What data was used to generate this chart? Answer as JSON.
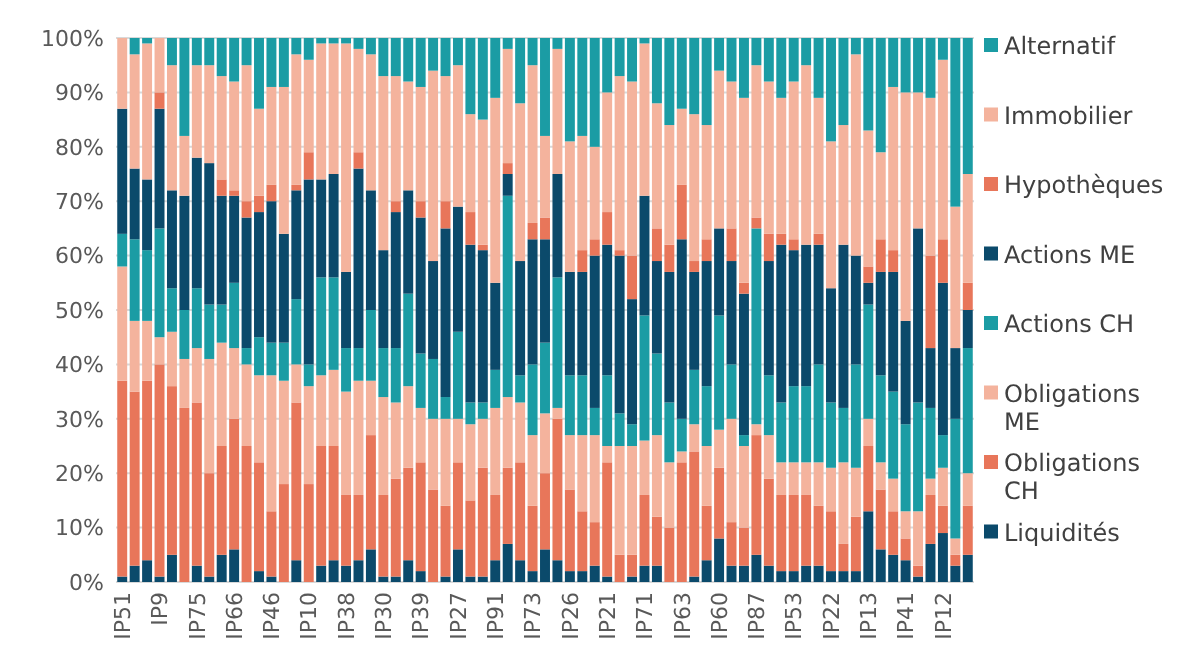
{
  "chart_data": {
    "type": "bar",
    "stacked": true,
    "legend": "right",
    "grid": "y",
    "categories": [
      "IP51",
      null,
      null,
      "IP9",
      null,
      null,
      "IP75",
      null,
      null,
      "IP66",
      null,
      null,
      "IP46",
      null,
      null,
      "IP10",
      null,
      null,
      "IP38",
      null,
      null,
      "IP30",
      null,
      null,
      "IP39",
      null,
      null,
      "IP27",
      null,
      null,
      "IP91",
      null,
      null,
      "IP73",
      null,
      null,
      "IP26",
      null,
      null,
      "IP21",
      null,
      null,
      "IP71",
      null,
      null,
      "IP63",
      null,
      null,
      "IP60",
      null,
      null,
      "IP87",
      null,
      null,
      "IP53",
      null,
      null,
      "IP22",
      null,
      null,
      "IP13",
      null,
      null,
      "IP41",
      null,
      null,
      "IP12",
      null,
      null
    ],
    "ylim": [
      0,
      100
    ],
    "yticks": [
      {
        "value": 0,
        "label": "0%"
      },
      {
        "value": 10,
        "label": "10%"
      },
      {
        "value": 20,
        "label": "20%"
      },
      {
        "value": 30,
        "label": "30%"
      },
      {
        "value": 40,
        "label": "40%"
      },
      {
        "value": 50,
        "label": "50%"
      },
      {
        "value": 60,
        "label": "60%"
      },
      {
        "value": 70,
        "label": "70%"
      },
      {
        "value": 80,
        "label": "80%"
      },
      {
        "value": 90,
        "label": "90%"
      },
      {
        "value": 100,
        "label": "100%"
      }
    ],
    "series": [
      {
        "name": "Liquidités",
        "color": "#0b4a6b",
        "values": [
          1,
          3,
          4,
          1,
          5,
          0,
          3,
          1,
          5,
          6,
          0,
          2,
          1,
          0,
          4,
          0,
          3,
          4,
          3,
          4,
          6,
          1,
          1,
          4,
          2,
          0,
          1,
          6,
          1,
          1,
          4,
          7,
          4,
          2,
          6,
          4,
          2,
          2,
          3,
          1,
          0,
          1,
          3,
          3,
          0,
          0,
          1,
          4,
          8,
          3,
          3,
          5,
          3,
          2,
          2,
          3,
          3,
          2,
          2,
          2,
          13,
          6,
          5,
          4,
          1,
          7,
          9,
          3,
          5
        ]
      },
      {
        "name": "Obligations CH",
        "color": "#e8765a",
        "values": [
          36,
          32,
          33,
          39,
          31,
          32,
          30,
          19,
          20,
          24,
          25,
          20,
          12,
          18,
          29,
          18,
          22,
          21,
          13,
          12,
          21,
          15,
          18,
          17,
          20,
          17,
          13,
          16,
          14,
          20,
          12,
          14,
          18,
          12,
          14,
          26,
          15,
          11,
          8,
          21,
          5,
          4,
          13,
          9,
          10,
          22,
          23,
          10,
          13,
          8,
          7,
          22,
          16,
          14,
          14,
          13,
          11,
          11,
          5,
          10,
          12,
          11,
          8,
          4,
          2,
          9,
          5,
          2,
          9
        ]
      },
      {
        "name": "Obligations ME",
        "color": "#f4b39d",
        "values": [
          21,
          13,
          11,
          5,
          10,
          9,
          10,
          21,
          19,
          13,
          15,
          16,
          25,
          19,
          7,
          18,
          13,
          14,
          19,
          21,
          10,
          18,
          14,
          15,
          10,
          13,
          16,
          8,
          14,
          9,
          16,
          13,
          11,
          13,
          11,
          2,
          10,
          14,
          16,
          3,
          20,
          20,
          10,
          15,
          12,
          2,
          5,
          11,
          7,
          19,
          15,
          2,
          8,
          6,
          6,
          6,
          8,
          8,
          15,
          9,
          5,
          5,
          6,
          5,
          10,
          3,
          7,
          3,
          6
        ]
      },
      {
        "name": "Actions CH",
        "color": "#1b9ca4",
        "values": [
          6,
          15,
          13,
          20,
          8,
          9,
          11,
          10,
          7,
          12,
          3,
          7,
          6,
          7,
          12,
          4,
          18,
          17,
          8,
          6,
          13,
          9,
          10,
          17,
          10,
          11,
          4,
          16,
          4,
          3,
          7,
          37,
          5,
          13,
          13,
          24,
          11,
          11,
          5,
          13,
          6,
          4,
          23,
          15,
          11,
          6,
          10,
          11,
          21,
          10,
          2,
          36,
          11,
          11,
          14,
          14,
          18,
          12,
          10,
          19,
          21,
          16,
          16,
          16,
          20,
          13,
          6,
          22,
          23
        ]
      },
      {
        "name": "Actions ME",
        "color": "#0b4a6b",
        "values": [
          23,
          13,
          13,
          22,
          18,
          21,
          24,
          26,
          20,
          16,
          24,
          23,
          26,
          20,
          20,
          34,
          18,
          19,
          14,
          33,
          22,
          18,
          25,
          19,
          25,
          18,
          31,
          23,
          29,
          28,
          16,
          4,
          21,
          23,
          19,
          19,
          19,
          19,
          28,
          24,
          29,
          23,
          22,
          17,
          24,
          33,
          18,
          23,
          16,
          19,
          26,
          0,
          21,
          29,
          25,
          26,
          22,
          21,
          30,
          20,
          4,
          19,
          22,
          19,
          32,
          11,
          28,
          13,
          7
        ]
      },
      {
        "name": "Hypothèques",
        "color": "#e8765a",
        "values": [
          0,
          0,
          0,
          3,
          0,
          0,
          0,
          0,
          3,
          1,
          3,
          3,
          3,
          0,
          1,
          5,
          0,
          0,
          0,
          3,
          0,
          0,
          2,
          0,
          3,
          0,
          5,
          0,
          6,
          1,
          0,
          2,
          0,
          3,
          4,
          0,
          0,
          4,
          3,
          6,
          1,
          8,
          0,
          6,
          5,
          10,
          2,
          4,
          0,
          6,
          2,
          2,
          5,
          2,
          2,
          0,
          2,
          0,
          0,
          0,
          3,
          6,
          4,
          0,
          0,
          17,
          8,
          0,
          5
        ]
      },
      {
        "name": "Immobilier",
        "color": "#f4b39d",
        "values": [
          13,
          21,
          25,
          10,
          23,
          11,
          17,
          18,
          19,
          20,
          25,
          16,
          18,
          27,
          24,
          17,
          25,
          24,
          42,
          19,
          25,
          32,
          23,
          20,
          21,
          35,
          23,
          26,
          18,
          23,
          34,
          21,
          29,
          29,
          15,
          23,
          24,
          21,
          17,
          22,
          32,
          32,
          28,
          23,
          22,
          14,
          27,
          21,
          29,
          27,
          34,
          28,
          28,
          25,
          29,
          33,
          25,
          27,
          22,
          37,
          25,
          16,
          30,
          42,
          25,
          29,
          33,
          26,
          20
        ]
      },
      {
        "name": "Alternatif",
        "color": "#1b9ca4",
        "values": [
          0,
          3,
          1,
          0,
          5,
          18,
          5,
          5,
          7,
          8,
          5,
          13,
          9,
          9,
          3,
          4,
          1,
          1,
          1,
          2,
          3,
          7,
          7,
          8,
          9,
          6,
          7,
          5,
          14,
          15,
          11,
          2,
          12,
          5,
          18,
          2,
          19,
          18,
          20,
          10,
          7,
          8,
          1,
          12,
          16,
          13,
          14,
          16,
          6,
          8,
          11,
          5,
          8,
          11,
          8,
          5,
          11,
          19,
          16,
          3,
          17,
          21,
          9,
          10,
          10,
          11,
          4,
          31,
          25
        ]
      }
    ]
  }
}
